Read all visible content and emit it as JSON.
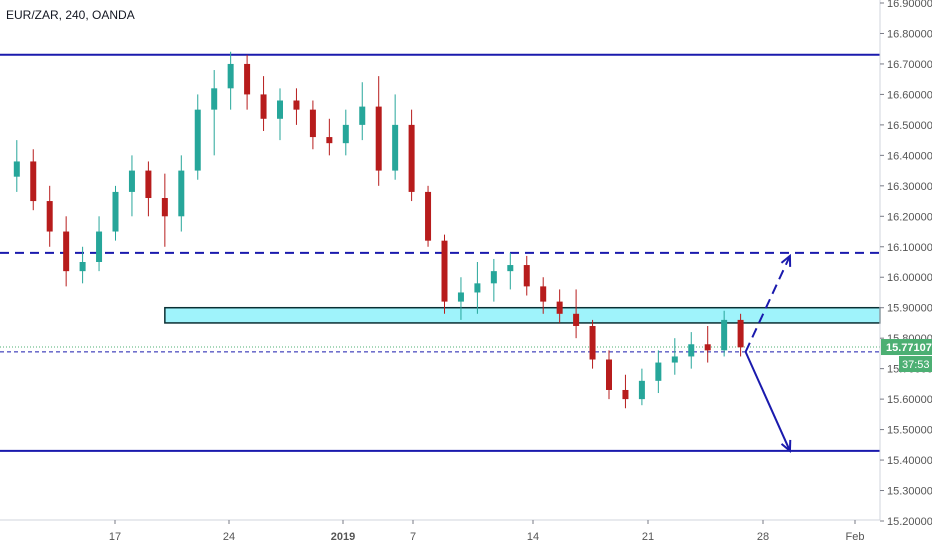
{
  "header": {
    "symbol_label": "EUR/ZAR, 240, OANDA"
  },
  "colors": {
    "up": "#26a69a",
    "down": "#b71c1c",
    "level_line": "#1a1aad",
    "zone_fill": "#9ff3fb",
    "zone_stroke": "#0a2f33",
    "price_tag": "#4caf73",
    "axis_text": "#555555",
    "grid_tick": "#787b86"
  },
  "chart_data": {
    "type": "candlestick",
    "title": "EUR/ZAR, 240, OANDA",
    "xlabel": "",
    "ylabel": "",
    "ylim": [
      15.2,
      16.9
    ],
    "y_ticks": [
      "15.20000",
      "15.30000",
      "15.40000",
      "15.50000",
      "15.60000",
      "15.70000",
      "15.80000",
      "15.90000",
      "16.00000",
      "16.10000",
      "16.20000",
      "16.30000",
      "16.40000",
      "16.50000",
      "16.60000",
      "16.70000",
      "16.80000",
      "16.90000"
    ],
    "x_ticks": [
      "17",
      "24",
      "2019",
      "7",
      "14",
      "21",
      "28",
      "Feb"
    ],
    "current_price": "15.77107",
    "countdown": "37:53",
    "levels": [
      {
        "name": "upper-resistance",
        "value": 16.73,
        "style": "solid"
      },
      {
        "name": "dashed-resistance",
        "value": 16.08,
        "style": "dashed"
      },
      {
        "name": "lower-support",
        "value": 15.43,
        "style": "solid"
      },
      {
        "name": "current-price-line",
        "value": 15.755,
        "style": "dashed-thin"
      }
    ],
    "zone": {
      "from_date": "Dec 20",
      "low": 15.85,
      "high": 15.9
    },
    "projections": [
      {
        "style": "dashed",
        "start_date": "Jan 24",
        "start": 15.755,
        "end_date": "Jan 27",
        "end": 16.07
      },
      {
        "style": "solid",
        "start_date": "Jan 24",
        "start": 15.755,
        "end_date": "Jan 27",
        "end": 15.43
      }
    ],
    "candles_sampled": [
      {
        "date": "Dec 11",
        "o": 16.33,
        "h": 16.45,
        "l": 16.28,
        "c": 16.38
      },
      {
        "date": "Dec 12",
        "o": 16.38,
        "h": 16.42,
        "l": 16.22,
        "c": 16.25
      },
      {
        "date": "Dec 13",
        "o": 16.25,
        "h": 16.3,
        "l": 16.1,
        "c": 16.15
      },
      {
        "date": "Dec 14",
        "o": 16.15,
        "h": 16.2,
        "l": 15.97,
        "c": 16.02
      },
      {
        "date": "Dec 15",
        "o": 16.02,
        "h": 16.1,
        "l": 15.98,
        "c": 16.05
      },
      {
        "date": "Dec 16",
        "o": 16.05,
        "h": 16.2,
        "l": 16.02,
        "c": 16.15
      },
      {
        "date": "Dec 17",
        "o": 16.15,
        "h": 16.3,
        "l": 16.12,
        "c": 16.28
      },
      {
        "date": "Dec 18",
        "o": 16.28,
        "h": 16.4,
        "l": 16.2,
        "c": 16.35
      },
      {
        "date": "Dec 19",
        "o": 16.35,
        "h": 16.38,
        "l": 16.2,
        "c": 16.26
      },
      {
        "date": "Dec 20",
        "o": 16.26,
        "h": 16.34,
        "l": 16.1,
        "c": 16.2
      },
      {
        "date": "Dec 21",
        "o": 16.2,
        "h": 16.4,
        "l": 16.15,
        "c": 16.35
      },
      {
        "date": "Dec 22",
        "o": 16.35,
        "h": 16.6,
        "l": 16.32,
        "c": 16.55
      },
      {
        "date": "Dec 23",
        "o": 16.55,
        "h": 16.68,
        "l": 16.4,
        "c": 16.62
      },
      {
        "date": "Dec 24",
        "o": 16.62,
        "h": 16.74,
        "l": 16.55,
        "c": 16.7
      },
      {
        "date": "Dec 25",
        "o": 16.7,
        "h": 16.73,
        "l": 16.55,
        "c": 16.6
      },
      {
        "date": "Dec 26",
        "o": 16.6,
        "h": 16.66,
        "l": 16.48,
        "c": 16.52
      },
      {
        "date": "Dec 27",
        "o": 16.52,
        "h": 16.62,
        "l": 16.45,
        "c": 16.58
      },
      {
        "date": "Dec 28",
        "o": 16.58,
        "h": 16.62,
        "l": 16.5,
        "c": 16.55
      },
      {
        "date": "Dec 29",
        "o": 16.55,
        "h": 16.58,
        "l": 16.42,
        "c": 16.46
      },
      {
        "date": "Dec 30",
        "o": 16.46,
        "h": 16.52,
        "l": 16.4,
        "c": 16.44
      },
      {
        "date": "Dec 31",
        "o": 16.44,
        "h": 16.55,
        "l": 16.4,
        "c": 16.5
      },
      {
        "date": "Jan 1",
        "o": 16.5,
        "h": 16.64,
        "l": 16.45,
        "c": 16.56
      },
      {
        "date": "Jan 2",
        "o": 16.56,
        "h": 16.66,
        "l": 16.3,
        "c": 16.35
      },
      {
        "date": "Jan 3",
        "o": 16.35,
        "h": 16.6,
        "l": 16.32,
        "c": 16.5
      },
      {
        "date": "Jan 4",
        "o": 16.5,
        "h": 16.55,
        "l": 16.25,
        "c": 16.28
      },
      {
        "date": "Jan 5",
        "o": 16.28,
        "h": 16.3,
        "l": 16.1,
        "c": 16.12
      },
      {
        "date": "Jan 6",
        "o": 16.12,
        "h": 16.14,
        "l": 15.88,
        "c": 15.92
      },
      {
        "date": "Jan 7",
        "o": 15.92,
        "h": 16.0,
        "l": 15.86,
        "c": 15.95
      },
      {
        "date": "Jan 8",
        "o": 15.95,
        "h": 16.05,
        "l": 15.88,
        "c": 15.98
      },
      {
        "date": "Jan 9",
        "o": 15.98,
        "h": 16.06,
        "l": 15.92,
        "c": 16.02
      },
      {
        "date": "Jan 10",
        "o": 16.02,
        "h": 16.08,
        "l": 15.96,
        "c": 16.04
      },
      {
        "date": "Jan 11",
        "o": 16.04,
        "h": 16.07,
        "l": 15.94,
        "c": 15.97
      },
      {
        "date": "Jan 12",
        "o": 15.97,
        "h": 16.0,
        "l": 15.88,
        "c": 15.92
      },
      {
        "date": "Jan 13",
        "o": 15.92,
        "h": 15.96,
        "l": 15.85,
        "c": 15.88
      },
      {
        "date": "Jan 14",
        "o": 15.88,
        "h": 15.96,
        "l": 15.8,
        "c": 15.84
      },
      {
        "date": "Jan 15",
        "o": 15.84,
        "h": 15.86,
        "l": 15.7,
        "c": 15.73
      },
      {
        "date": "Jan 16",
        "o": 15.73,
        "h": 15.76,
        "l": 15.6,
        "c": 15.63
      },
      {
        "date": "Jan 17",
        "o": 15.63,
        "h": 15.68,
        "l": 15.57,
        "c": 15.6
      },
      {
        "date": "Jan 18",
        "o": 15.6,
        "h": 15.7,
        "l": 15.58,
        "c": 15.66
      },
      {
        "date": "Jan 19",
        "o": 15.66,
        "h": 15.76,
        "l": 15.62,
        "c": 15.72
      },
      {
        "date": "Jan 20",
        "o": 15.72,
        "h": 15.8,
        "l": 15.68,
        "c": 15.74
      },
      {
        "date": "Jan 21",
        "o": 15.74,
        "h": 15.82,
        "l": 15.7,
        "c": 15.78
      },
      {
        "date": "Jan 22",
        "o": 15.78,
        "h": 15.84,
        "l": 15.72,
        "c": 15.76
      },
      {
        "date": "Jan 23",
        "o": 15.76,
        "h": 15.89,
        "l": 15.74,
        "c": 15.86
      },
      {
        "date": "Jan 24",
        "o": 15.86,
        "h": 15.88,
        "l": 15.74,
        "c": 15.77
      }
    ]
  }
}
